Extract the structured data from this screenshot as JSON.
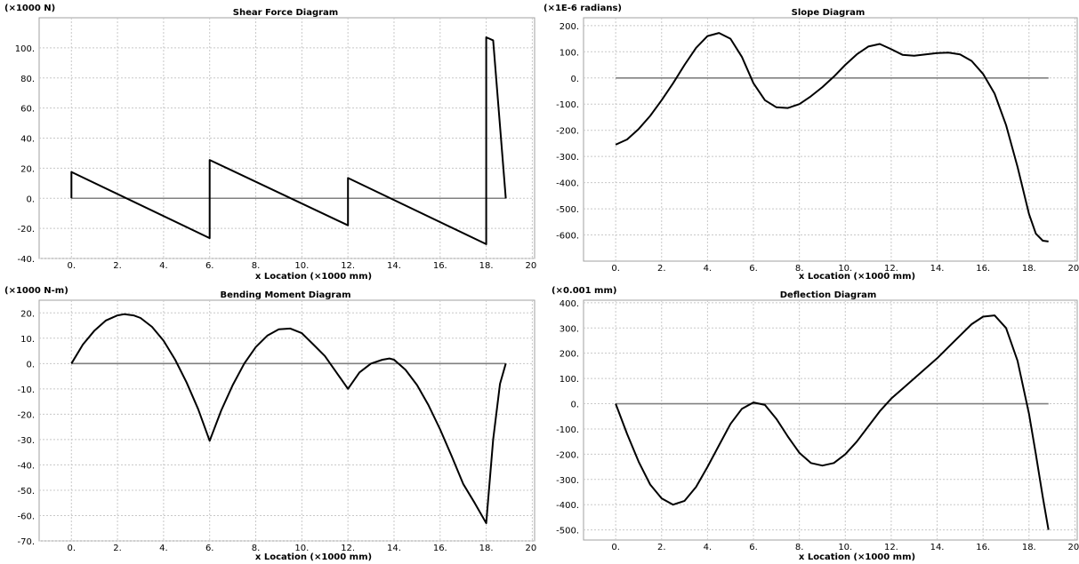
{
  "chart_data": [
    {
      "type": "line",
      "title": "Shear Force Diagram",
      "unit_label": "(×1000 N)",
      "xlabel": "x Location (×1000 mm)",
      "ylabel": "",
      "xlim": [
        -1.4,
        20.1
      ],
      "ylim": [
        -40,
        120
      ],
      "xticks": [
        0,
        2,
        4,
        6,
        8,
        10,
        12,
        14,
        16,
        18,
        20
      ],
      "xtick_labels": [
        "0.",
        "2.",
        "4.",
        "6.",
        "8.",
        "10.",
        "12.",
        "14.",
        "16.",
        "18.",
        "20."
      ],
      "yticks": [
        -40,
        -20,
        0,
        20,
        40,
        60,
        80,
        100
      ],
      "ytick_labels": [
        "-40.",
        "-20.",
        "0.",
        "20.",
        "40.",
        "60.",
        "80.",
        "100."
      ],
      "grid": true,
      "series": [
        {
          "x": [
            0,
            0,
            6,
            6,
            12,
            12,
            18,
            18,
            18.3,
            18.85
          ],
          "y": [
            0,
            17.5,
            -26.5,
            25.5,
            -18,
            13.5,
            -30.5,
            107,
            105,
            0
          ]
        }
      ],
      "baseline": {
        "y": 0,
        "x": [
          0,
          18.85
        ]
      }
    },
    {
      "type": "line",
      "title": "Slope Diagram",
      "unit_label": "(×1E-6 radians)",
      "xlabel": "x Location (×1000 mm)",
      "ylabel": "",
      "xlim": [
        -1.4,
        20.1
      ],
      "ylim": [
        -700,
        230
      ],
      "xticks": [
        0,
        2,
        4,
        6,
        8,
        10,
        12,
        14,
        16,
        18,
        20
      ],
      "xtick_labels": [
        "0.",
        "2.",
        "4.",
        "6.",
        "8.",
        "10.",
        "12.",
        "14.",
        "16.",
        "18.",
        "20."
      ],
      "yticks": [
        -600,
        -500,
        -400,
        -300,
        -200,
        -100,
        0,
        100,
        200
      ],
      "ytick_labels": [
        "-600.",
        "-500.",
        "-400.",
        "-300.",
        "-200.",
        "-100.",
        "0.",
        "100.",
        "200."
      ],
      "grid": true,
      "series": [
        {
          "x": [
            0,
            0.5,
            1,
            1.5,
            2,
            2.5,
            3,
            3.5,
            4,
            4.5,
            5,
            5.5,
            6,
            6.5,
            7,
            7.5,
            8,
            8.5,
            9,
            9.5,
            10,
            10.5,
            11,
            11.5,
            12,
            12.5,
            13,
            13.5,
            14,
            14.5,
            15,
            15.5,
            16,
            16.5,
            17,
            17.5,
            18,
            18.3,
            18.6,
            18.85
          ],
          "y": [
            -255,
            -235,
            -195,
            -145,
            -85,
            -20,
            50,
            115,
            160,
            172,
            150,
            80,
            -20,
            -85,
            -112,
            -115,
            -100,
            -70,
            -35,
            5,
            50,
            90,
            120,
            130,
            110,
            88,
            85,
            90,
            95,
            97,
            90,
            65,
            15,
            -60,
            -180,
            -340,
            -520,
            -595,
            -622,
            -625
          ]
        }
      ],
      "baseline": {
        "y": 0,
        "x": [
          0,
          18.85
        ]
      }
    },
    {
      "type": "line",
      "title": "Bending Moment Diagram",
      "unit_label": "(×1000 N-m)",
      "xlabel": "x Location (×1000 mm)",
      "ylabel": "",
      "xlim": [
        -1.4,
        20.1
      ],
      "ylim": [
        -70,
        25
      ],
      "xticks": [
        0,
        2,
        4,
        6,
        8,
        10,
        12,
        14,
        16,
        18,
        20
      ],
      "xtick_labels": [
        "0.",
        "2.",
        "4.",
        "6.",
        "8.",
        "10.",
        "12.",
        "14.",
        "16.",
        "18.",
        "20."
      ],
      "yticks": [
        -70,
        -60,
        -50,
        -40,
        -30,
        -20,
        -10,
        0,
        10,
        20
      ],
      "ytick_labels": [
        "-70.",
        "-60.",
        "-50.",
        "-40.",
        "-30.",
        "-20.",
        "-10.",
        "0.",
        "10.",
        "20."
      ],
      "grid": true,
      "series": [
        {
          "x": [
            0,
            0.5,
            1,
            1.5,
            2,
            2.3,
            2.7,
            3,
            3.5,
            4,
            4.5,
            5,
            5.5,
            6,
            6.5,
            7,
            7.5,
            8,
            8.5,
            9,
            9.5,
            10,
            10.5,
            11,
            11.5,
            12,
            12.5,
            13,
            13.5,
            13.8,
            14,
            14.5,
            15,
            15.5,
            16,
            16.5,
            17,
            17.5,
            18,
            18.3,
            18.6,
            18.85
          ],
          "y": [
            0,
            7.5,
            13,
            17,
            19,
            19.5,
            19,
            18,
            14.5,
            9,
            1.5,
            -7.5,
            -18,
            -30.5,
            -18.5,
            -8.5,
            0,
            6.5,
            11,
            13.5,
            13.8,
            12,
            7.5,
            3,
            -3.5,
            -10,
            -3.5,
            0,
            1.5,
            2,
            1.5,
            -2.5,
            -8.5,
            -16.5,
            -26,
            -36.5,
            -47.5,
            -55,
            -63,
            -30,
            -8,
            0
          ]
        }
      ],
      "baseline": {
        "y": 0,
        "x": [
          0,
          18.85
        ]
      }
    },
    {
      "type": "line",
      "title": "Deflection Diagram",
      "unit_label": "(×0.001 mm)",
      "xlabel": "x Location (×1000 mm)",
      "ylabel": "",
      "xlim": [
        -1.4,
        20.1
      ],
      "ylim": [
        -540,
        410
      ],
      "xticks": [
        0,
        2,
        4,
        6,
        8,
        10,
        12,
        14,
        16,
        18,
        20
      ],
      "xtick_labels": [
        "0.",
        "2.",
        "4.",
        "6.",
        "8.",
        "10.",
        "12.",
        "14.",
        "16.",
        "18.",
        "20."
      ],
      "yticks": [
        -500,
        -400,
        -300,
        -200,
        -100,
        0,
        100,
        200,
        300,
        400
      ],
      "ytick_labels": [
        "-500.",
        "-400.",
        "-300.",
        "-200.",
        "-100.",
        "0.",
        "100.",
        "200.",
        "300.",
        "400."
      ],
      "grid": true,
      "series": [
        {
          "x": [
            0,
            0.5,
            1,
            1.5,
            2,
            2.5,
            3,
            3.5,
            4,
            4.5,
            5,
            5.5,
            6,
            6.5,
            7,
            7.5,
            8,
            8.5,
            9,
            9.5,
            10,
            10.5,
            11,
            11.5,
            12,
            12.5,
            13,
            13.5,
            14,
            14.5,
            15,
            15.5,
            16,
            16.5,
            17,
            17.5,
            18,
            18.3,
            18.6,
            18.85
          ],
          "y": [
            0,
            -120,
            -230,
            -320,
            -375,
            -400,
            -385,
            -330,
            -250,
            -165,
            -80,
            -20,
            5,
            -5,
            -60,
            -130,
            -195,
            -235,
            -245,
            -235,
            -200,
            -150,
            -90,
            -30,
            20,
            60,
            100,
            140,
            180,
            225,
            270,
            315,
            345,
            350,
            300,
            170,
            -40,
            -200,
            -370,
            -500
          ]
        }
      ],
      "baseline": {
        "y": 0,
        "x": [
          0,
          18.85
        ]
      }
    }
  ]
}
